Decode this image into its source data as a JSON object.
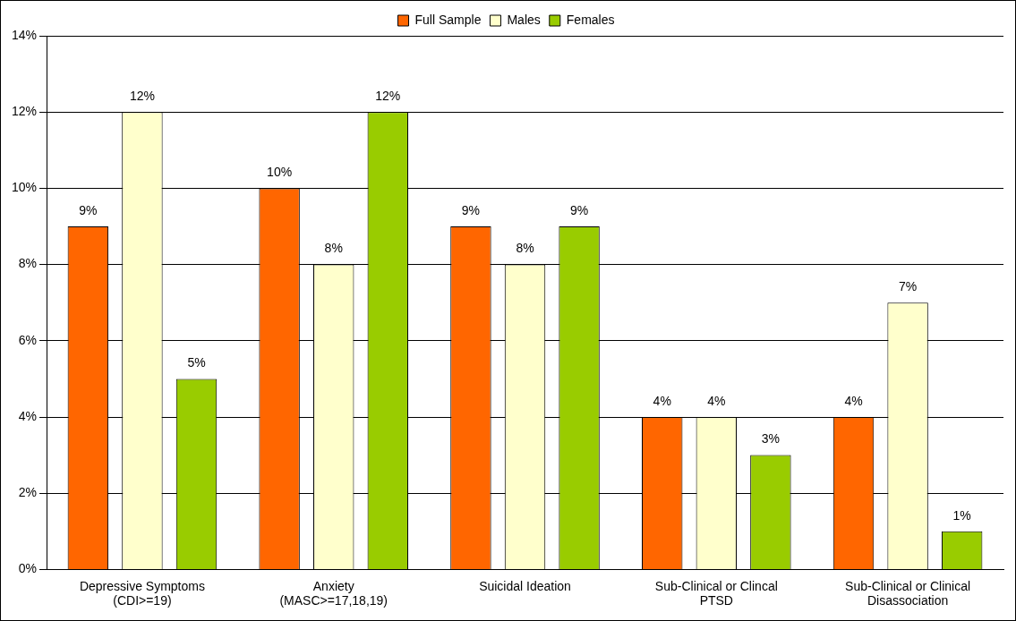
{
  "chart_data": {
    "type": "bar",
    "categories": [
      "Depressive Symptoms\n(CDI>=19)",
      "Anxiety\n(MASC>=17,18,19)",
      "Suicidal Ideation",
      "Sub-Clinical or Clincal\nPTSD",
      "Sub-Clinical or Clinical\nDisassociation"
    ],
    "series": [
      {
        "name": "Full Sample",
        "color": "#ff6600",
        "values": [
          9,
          10,
          9,
          4,
          4
        ],
        "value_labels": [
          "9%",
          "10%",
          "9%",
          "4%",
          "4%"
        ]
      },
      {
        "name": "Males",
        "color": "#ffffcc",
        "values": [
          12,
          8,
          8,
          4,
          7
        ],
        "value_labels": [
          "12%",
          "8%",
          "8%",
          "4%",
          "7%"
        ]
      },
      {
        "name": "Females",
        "color": "#99cc00",
        "values": [
          5,
          12,
          9,
          3,
          1
        ],
        "value_labels": [
          "5%",
          "12%",
          "9%",
          "3%",
          "1%"
        ]
      }
    ],
    "ylim": [
      0,
      14
    ],
    "yticks": [
      {
        "value": 0,
        "label": "0%"
      },
      {
        "value": 2,
        "label": "2%"
      },
      {
        "value": 4,
        "label": "4%"
      },
      {
        "value": 6,
        "label": "6%"
      },
      {
        "value": 8,
        "label": "8%"
      },
      {
        "value": 10,
        "label": "10%"
      },
      {
        "value": 12,
        "label": "12%"
      },
      {
        "value": 14,
        "label": "14%"
      }
    ],
    "grid": "y",
    "legend": "top"
  }
}
